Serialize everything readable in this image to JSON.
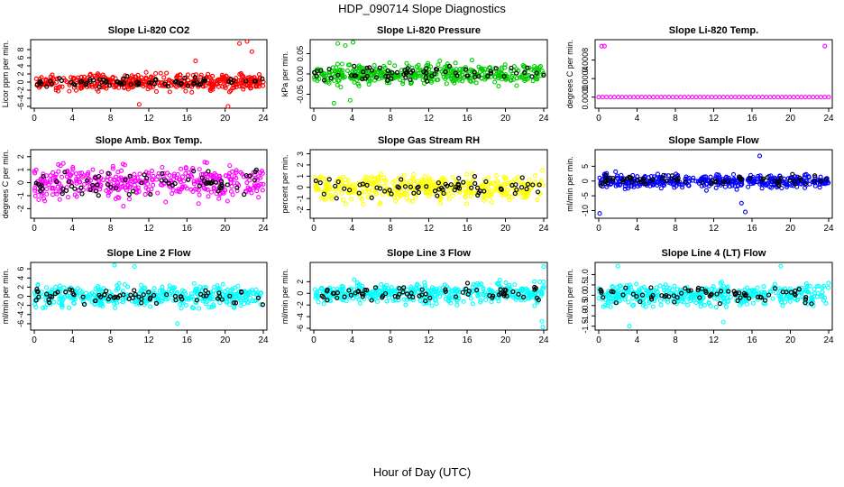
{
  "page": {
    "title": "HDP_090714  Slope Diagnostics",
    "xlabel": "Hour of Day (UTC)"
  },
  "colors": {
    "overlay": "#000000",
    "axis": "#000000"
  },
  "chart_data": [
    {
      "type": "scatter",
      "title": "Slope Li-820 CO2",
      "ylabel": "Licor ppm per min.",
      "color": "#ff0000",
      "xlim": [
        0,
        24
      ],
      "ylim": [
        -6,
        10
      ],
      "xticks": [
        0,
        4,
        8,
        12,
        16,
        20,
        24
      ],
      "yticks": [
        -6,
        -4,
        -2,
        0,
        2,
        4,
        6,
        8
      ],
      "ytick_labels": [
        "-6",
        "-4",
        "-2",
        "0",
        "2",
        "4",
        "6",
        "8"
      ],
      "series_spread": 1.6,
      "n": 420,
      "overlay_n": 70,
      "outliers": [
        [
          21.5,
          9.5
        ],
        [
          22.3,
          10.0
        ],
        [
          22.8,
          7.5
        ],
        [
          20.3,
          -6.0
        ],
        [
          11.0,
          -5.5
        ],
        [
          16.9,
          5.2
        ]
      ]
    },
    {
      "type": "scatter",
      "title": "Slope Li-820 Pressure",
      "ylabel": "kPa per min.",
      "color": "#00cc00",
      "xlim": [
        0,
        24
      ],
      "ylim": [
        -0.08,
        0.08
      ],
      "xticks": [
        0,
        4,
        8,
        12,
        16,
        20,
        24
      ],
      "yticks": [
        -0.05,
        0.0,
        0.05
      ],
      "ytick_labels": [
        "-0.05",
        "0.00",
        "0.05"
      ],
      "series_spread": 0.02,
      "n": 420,
      "overlay_n": 70,
      "outliers": [
        [
          2.5,
          0.075
        ],
        [
          3.3,
          0.07
        ],
        [
          4.1,
          0.078
        ],
        [
          2.1,
          -0.072
        ],
        [
          3.8,
          -0.065
        ]
      ]
    },
    {
      "type": "scatter",
      "title": "Slope Li-820 Temp.",
      "ylabel": "degrees C per min.",
      "color": "#ff00ff",
      "xlim": [
        0,
        24
      ],
      "ylim": [
        -0.0002,
        0.0012
      ],
      "xticks": [
        0,
        4,
        8,
        12,
        16,
        20,
        24
      ],
      "yticks": [
        0.0,
        0.0004,
        0.0008
      ],
      "ytick_labels": [
        "0.0000",
        "0.0004",
        "0.0008"
      ],
      "flat": 0.0,
      "n": 60,
      "overlay_n": 0,
      "outliers": [
        [
          0.3,
          0.0011
        ],
        [
          0.6,
          0.0011
        ],
        [
          23.6,
          0.0011
        ]
      ]
    },
    {
      "type": "scatter",
      "title": "Slope Amb. Box Temp.",
      "ylabel": "degrees C per min.",
      "color": "#ff00ff",
      "xlim": [
        0,
        24
      ],
      "ylim": [
        -2.6,
        2.4
      ],
      "xticks": [
        0,
        4,
        8,
        12,
        16,
        20,
        24
      ],
      "yticks": [
        -2,
        -1,
        0,
        1,
        2
      ],
      "ytick_labels": [
        "-2",
        "-1",
        "0",
        "1",
        "2"
      ],
      "series_spread": 1.0,
      "n": 400,
      "overlay_n": 70,
      "outliers": []
    },
    {
      "type": "scatter",
      "title": "Slope Gas Stream RH",
      "ylabel": "percent per min.",
      "color": "#ffff00",
      "xlim": [
        0,
        24
      ],
      "ylim": [
        -2.6,
        3.2
      ],
      "xticks": [
        0,
        4,
        8,
        12,
        16,
        20,
        24
      ],
      "yticks": [
        -2,
        -1,
        0,
        1,
        2,
        3
      ],
      "ytick_labels": [
        "-2",
        "-1",
        "0",
        "1",
        "2",
        "3"
      ],
      "series_spread": 1.0,
      "n": 420,
      "overlay_n": 70,
      "outliers": []
    },
    {
      "type": "scatter",
      "title": "Slope Sample Flow",
      "ylabel": "ml/min per min.",
      "color": "#0000ff",
      "xlim": [
        0,
        24
      ],
      "ylim": [
        -12,
        10
      ],
      "xticks": [
        0,
        4,
        8,
        12,
        16,
        20,
        24
      ],
      "yticks": [
        -10,
        -5,
        0,
        5
      ],
      "ytick_labels": [
        "-10",
        "-5",
        "0",
        "5"
      ],
      "series_spread": 1.8,
      "n": 420,
      "overlay_n": 70,
      "outliers": [
        [
          0.1,
          -11.0
        ],
        [
          15.3,
          -10.5
        ],
        [
          16.8,
          8.5
        ],
        [
          14.9,
          -7.5
        ]
      ]
    },
    {
      "type": "scatter",
      "title": "Slope Line 2 Flow",
      "ylabel": "ml/min per min.",
      "color": "#00ffff",
      "xlim": [
        0,
        24
      ],
      "ylim": [
        -7,
        7
      ],
      "xticks": [
        0,
        4,
        8,
        12,
        16,
        20,
        24
      ],
      "yticks": [
        -6,
        -4,
        -2,
        0,
        2,
        4,
        6
      ],
      "ytick_labels": [
        "-6",
        "-4",
        "-2",
        "0",
        "2",
        "4",
        "6"
      ],
      "series_spread": 1.8,
      "n": 420,
      "overlay_n": 70,
      "outliers": [
        [
          8.4,
          6.8
        ],
        [
          10.5,
          6.5
        ],
        [
          15.0,
          -6.0
        ]
      ]
    },
    {
      "type": "scatter",
      "title": "Slope Line 3 Flow",
      "ylabel": "ml/min per min.",
      "color": "#00ffff",
      "xlim": [
        0,
        24
      ],
      "ylim": [
        -6,
        5
      ],
      "xticks": [
        0,
        4,
        8,
        12,
        16,
        20,
        24
      ],
      "yticks": [
        -6,
        -4,
        -2,
        0,
        2
      ],
      "ytick_labels": [
        "-6",
        "-4",
        "-2",
        "0",
        "2"
      ],
      "series_spread": 1.4,
      "n": 420,
      "overlay_n": 70,
      "outliers": [
        [
          23.9,
          -5.8
        ],
        [
          23.8,
          -4.8
        ],
        [
          24.0,
          4.6
        ]
      ]
    },
    {
      "type": "scatter",
      "title": "Slope Line 4 (LT) Flow",
      "ylabel": "ml/min per min.",
      "color": "#00ffff",
      "xlim": [
        0,
        24
      ],
      "ylim": [
        -1.6,
        1.5
      ],
      "xticks": [
        0,
        4,
        8,
        12,
        16,
        20,
        24
      ],
      "yticks": [
        -1.5,
        -1.0,
        -0.5,
        0.0,
        0.5,
        1.0
      ],
      "ytick_labels": [
        "-1.5",
        "-1.0",
        "-0.5",
        "0.0",
        "0.5",
        "1.0"
      ],
      "series_spread": 0.45,
      "n": 420,
      "overlay_n": 70,
      "outliers": [
        [
          2.0,
          1.4
        ],
        [
          3.2,
          -1.5
        ],
        [
          19.0,
          1.4
        ],
        [
          13.0,
          -1.3
        ]
      ]
    }
  ]
}
